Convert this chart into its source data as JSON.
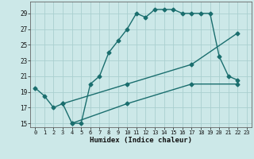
{
  "xlabel": "Humidex (Indice chaleur)",
  "xlim": [
    -0.5,
    23.5
  ],
  "ylim": [
    14.5,
    30.5
  ],
  "xticks": [
    0,
    1,
    2,
    3,
    4,
    5,
    6,
    7,
    8,
    9,
    10,
    11,
    12,
    13,
    14,
    15,
    16,
    17,
    18,
    19,
    20,
    21,
    22,
    23
  ],
  "yticks": [
    15,
    17,
    19,
    21,
    23,
    25,
    27,
    29
  ],
  "bg_color": "#cce8e8",
  "grid_color": "#aacfcf",
  "line_color": "#1a6e6e",
  "line1_x": [
    0,
    1,
    2,
    3,
    4,
    5,
    6,
    7,
    8,
    9,
    10,
    11,
    12,
    13,
    14,
    15,
    16,
    17,
    18,
    19,
    20,
    21,
    22
  ],
  "line1_y": [
    19.5,
    18.5,
    17.0,
    17.5,
    15.0,
    15.0,
    20.0,
    21.0,
    24.0,
    25.5,
    27.0,
    29.0,
    28.5,
    29.5,
    29.5,
    29.5,
    29.0,
    29.0,
    29.0,
    29.0,
    23.5,
    21.0,
    20.5
  ],
  "line2_x": [
    3,
    10,
    17,
    22
  ],
  "line2_y": [
    17.5,
    20.0,
    22.5,
    26.5
  ],
  "line3_x": [
    4,
    10,
    17,
    22
  ],
  "line3_y": [
    15.0,
    17.5,
    20.0,
    20.0
  ],
  "marker_size": 2.5,
  "line_width": 1.0
}
